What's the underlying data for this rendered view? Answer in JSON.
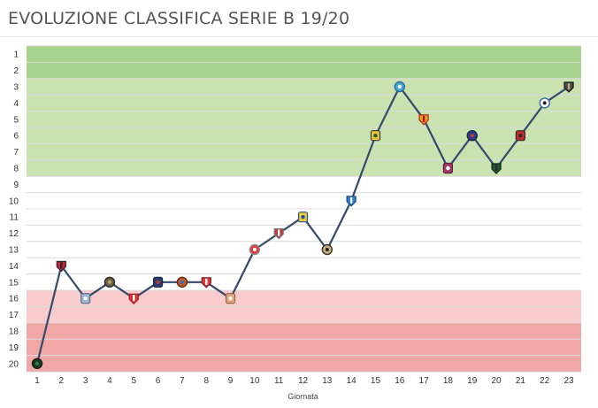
{
  "title": "EVOLUZIONE CLASSIFICA SERIE B 19/20",
  "chart_data": {
    "type": "line",
    "title": "EVOLUZIONE CLASSIFICA SERIE B 19/20",
    "xlabel": "Giornata",
    "ylabel": "",
    "x": [
      1,
      2,
      3,
      4,
      5,
      6,
      7,
      8,
      9,
      10,
      11,
      12,
      13,
      14,
      15,
      16,
      17,
      18,
      19,
      20,
      21,
      22,
      23
    ],
    "x_tick_labels": [
      "1",
      "2",
      "3",
      "4",
      "5",
      "6",
      "7",
      "8",
      "9",
      "10",
      "11",
      "12",
      "13",
      "14",
      "15",
      "16",
      "17",
      "18",
      "19",
      "20",
      "21",
      "22",
      "23"
    ],
    "y_tick_labels": [
      "1",
      "2",
      "3",
      "4",
      "5",
      "6",
      "7",
      "8",
      "9",
      "10",
      "11",
      "12",
      "13",
      "14",
      "15",
      "16",
      "17",
      "18",
      "19",
      "20"
    ],
    "ylim": [
      20,
      1
    ],
    "y_inverted": true,
    "series": [
      {
        "values": [
          20,
          14,
          16,
          15,
          16,
          15,
          15,
          15,
          16,
          13,
          12,
          11,
          13,
          10,
          6,
          3,
          5,
          8,
          6,
          8,
          6,
          4,
          3
        ],
        "color": "#34496b"
      }
    ],
    "bands": [
      {
        "from": 1,
        "to": 2,
        "color": "#a9d18e"
      },
      {
        "from": 3,
        "to": 8,
        "color": "#c9e2b0"
      },
      {
        "from": 9,
        "to": 15,
        "color": "#ffffff"
      },
      {
        "from": 16,
        "to": 17,
        "color": "#f8cccc"
      },
      {
        "from": 18,
        "to": 20,
        "color": "#f2a7a7"
      }
    ],
    "markers": [
      {
        "bg": "#1a3d22",
        "stroke": "#0d1f12",
        "accent": "#3a7a45"
      },
      {
        "bg": "#c4243a",
        "stroke": "#2a2a2a",
        "accent": "#2a2a2a"
      },
      {
        "bg": "#9db7d6",
        "stroke": "#5a6c85",
        "accent": "#ffffff"
      },
      {
        "bg": "#6b6046",
        "stroke": "#2e2a1f",
        "accent": "#bca36d"
      },
      {
        "bg": "#d8323c",
        "stroke": "#a61e27",
        "accent": "#ffffff"
      },
      {
        "bg": "#2b3e72",
        "stroke": "#1a2544",
        "accent": "#c23b2d"
      },
      {
        "bg": "#c45a2a",
        "stroke": "#5a2a14",
        "accent": "#2b78c4"
      },
      {
        "bg": "#e03a3a",
        "stroke": "#7a1d1d",
        "accent": "#ffffff"
      },
      {
        "bg": "#e0a57a",
        "stroke": "#9a6340",
        "accent": "#ffffff"
      },
      {
        "bg": "#d94040",
        "stroke": "#8a8a8a",
        "accent": "#ffffff"
      },
      {
        "bg": "#c03a3a",
        "stroke": "#7a7a7a",
        "accent": "#ffffff"
      },
      {
        "bg": "#e8d23a",
        "stroke": "#2a4a9a",
        "accent": "#2a4a9a"
      },
      {
        "bg": "#c8b27a",
        "stroke": "#333333",
        "accent": "#222222"
      },
      {
        "bg": "#2f7fd1",
        "stroke": "#1a4a80",
        "accent": "#ffffff"
      },
      {
        "bg": "#e8c83a",
        "stroke": "#3a3a3a",
        "accent": "#2a5a2a"
      },
      {
        "bg": "#4aa7d8",
        "stroke": "#2a6a9a",
        "accent": "#ffffff"
      },
      {
        "bg": "#f0a020",
        "stroke": "#b02020",
        "accent": "#b02020"
      },
      {
        "bg": "#a63a6a",
        "stroke": "#5a1a3a",
        "accent": "#ffffff"
      },
      {
        "bg": "#2a3e8a",
        "stroke": "#1a2544",
        "accent": "#c23b2d"
      },
      {
        "bg": "#1f5a30",
        "stroke": "#0d2a15",
        "accent": "#2a2a2a"
      },
      {
        "bg": "#c42a2a",
        "stroke": "#2a2a2a",
        "accent": "#2a2a2a"
      },
      {
        "bg": "#ffffff",
        "stroke": "#3a6aa8",
        "accent": "#1a1a1a"
      },
      {
        "bg": "#4a4a4a",
        "stroke": "#1a1a1a",
        "accent": "#c9a46a"
      }
    ],
    "grid": true,
    "legend": "none"
  }
}
